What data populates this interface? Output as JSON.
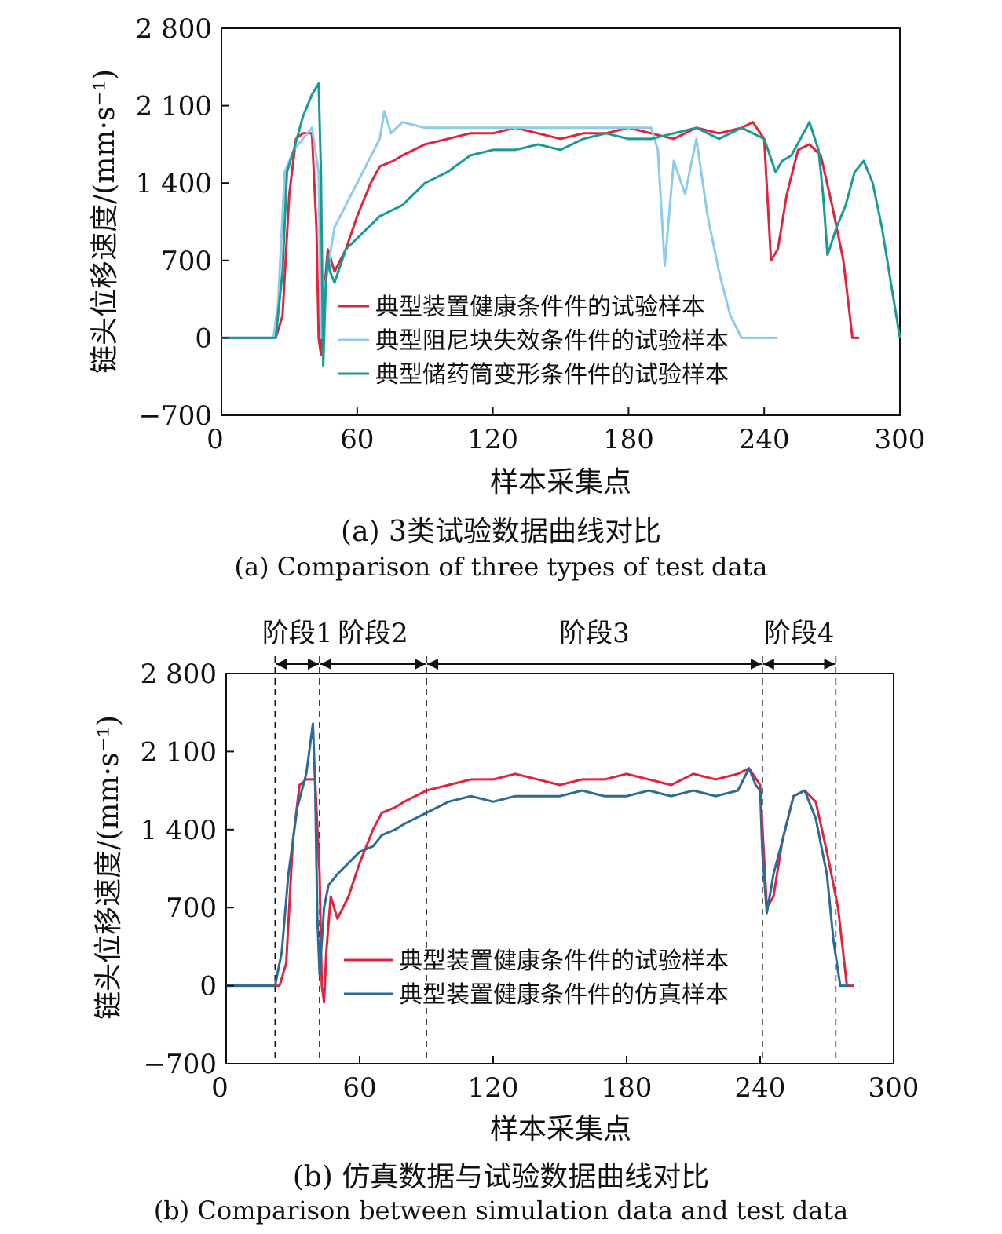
{
  "chart_data": [
    {
      "type": "line",
      "panel": "a",
      "caption_zh": "(a) 3类试验数据曲线对比",
      "caption_en": "(a) Comparison of three types of test data",
      "xlabel": "样本采集点",
      "ylabel": "链头位移速度/(mm·s⁻¹)",
      "xlim": [
        0,
        300
      ],
      "ylim": [
        -700,
        2800
      ],
      "xticks": [
        0,
        60,
        120,
        180,
        240,
        300
      ],
      "yticks": [
        -700,
        0,
        700,
        1400,
        2100,
        2800
      ],
      "ytick_labels": [
        "−700",
        "0",
        "700",
        "1 400",
        "2 100",
        "2 800"
      ],
      "grid": false,
      "legend_position": "lower-center",
      "series": [
        {
          "name": "典型装置健康条件件的试验样本",
          "color": "#e0243c",
          "x": [
            0,
            24,
            27,
            30,
            33,
            36,
            40,
            42,
            43,
            44,
            45,
            47,
            50,
            55,
            60,
            66,
            70,
            76,
            80,
            90,
            100,
            110,
            120,
            130,
            140,
            150,
            160,
            170,
            180,
            190,
            200,
            210,
            220,
            230,
            235,
            240,
            243,
            246,
            250,
            255,
            260,
            265,
            270,
            275,
            279,
            282
          ],
          "y": [
            0,
            0,
            200,
            1300,
            1800,
            1850,
            1850,
            1000,
            0,
            -150,
            300,
            800,
            600,
            800,
            1100,
            1400,
            1550,
            1600,
            1650,
            1750,
            1800,
            1850,
            1850,
            1900,
            1850,
            1800,
            1850,
            1850,
            1900,
            1850,
            1800,
            1900,
            1850,
            1900,
            1950,
            1800,
            700,
            800,
            1300,
            1700,
            1750,
            1650,
            1200,
            700,
            0,
            0
          ]
        },
        {
          "name": "典型阻尼块失效条件件的试验样本",
          "color": "#8dcbeb",
          "x": [
            0,
            23,
            25,
            28,
            32,
            36,
            40,
            43,
            44,
            46,
            50,
            55,
            60,
            65,
            70,
            72,
            75,
            80,
            90,
            100,
            110,
            120,
            140,
            160,
            180,
            190,
            193,
            196,
            200,
            205,
            210,
            215,
            220,
            225,
            230,
            240,
            246
          ],
          "y": [
            0,
            0,
            300,
            1500,
            1700,
            1800,
            1900,
            1500,
            0,
            500,
            1000,
            1200,
            1400,
            1600,
            1800,
            2050,
            1850,
            1950,
            1900,
            1900,
            1900,
            1900,
            1900,
            1900,
            1900,
            1900,
            1700,
            650,
            1600,
            1300,
            1800,
            1100,
            600,
            200,
            0,
            0,
            0
          ]
        },
        {
          "name": "典型储药筒变形条件件的试验样本",
          "color": "#1a9a94",
          "x": [
            0,
            24,
            27,
            29,
            32,
            36,
            40,
            43,
            44,
            45,
            46,
            47,
            48,
            50,
            55,
            60,
            65,
            70,
            80,
            90,
            100,
            110,
            120,
            130,
            140,
            150,
            160,
            170,
            180,
            190,
            200,
            210,
            220,
            230,
            240,
            245,
            248,
            252,
            256,
            260,
            264,
            266,
            268,
            272,
            276,
            280,
            284,
            288,
            292,
            296,
            300
          ],
          "y": [
            0,
            0,
            600,
            1500,
            1700,
            2000,
            2200,
            2300,
            1500,
            -250,
            400,
            750,
            600,
            500,
            800,
            900,
            1000,
            1100,
            1200,
            1400,
            1500,
            1650,
            1700,
            1700,
            1750,
            1700,
            1800,
            1850,
            1800,
            1800,
            1850,
            1900,
            1800,
            1900,
            1800,
            1500,
            1600,
            1650,
            1800,
            1950,
            1700,
            1300,
            750,
            1000,
            1200,
            1500,
            1600,
            1400,
            1000,
            500,
            0
          ]
        }
      ]
    },
    {
      "type": "line",
      "panel": "b",
      "caption_zh": "(b) 仿真数据与试验数据曲线对比",
      "caption_en": "(b) Comparison between simulation data and test data",
      "xlabel": "样本采集点",
      "ylabel": "链头位移速度/(mm·s⁻¹)",
      "xlim": [
        0,
        300
      ],
      "ylim": [
        -700,
        2800
      ],
      "xticks": [
        0,
        60,
        120,
        180,
        240,
        300
      ],
      "yticks": [
        -700,
        0,
        700,
        1400,
        2100,
        2800
      ],
      "ytick_labels": [
        "−700",
        "0",
        "700",
        "1 400",
        "2 100",
        "2 800"
      ],
      "grid": false,
      "legend_position": "lower-center",
      "stages": [
        {
          "label": "阶段1",
          "x_start": 22,
          "x_end": 42
        },
        {
          "label": "阶段2",
          "x_start": 42,
          "x_end": 90
        },
        {
          "label": "阶段3",
          "x_start": 90,
          "x_end": 241
        },
        {
          "label": "阶段4",
          "x_start": 241,
          "x_end": 274
        }
      ],
      "series": [
        {
          "name": "典型装置健康条件件的试验样本",
          "color": "#e0243c",
          "x": [
            0,
            24,
            27,
            30,
            33,
            36,
            40,
            42,
            43,
            44,
            45,
            47,
            50,
            55,
            60,
            66,
            70,
            76,
            80,
            90,
            100,
            110,
            120,
            130,
            140,
            150,
            160,
            170,
            180,
            190,
            200,
            210,
            220,
            230,
            235,
            240,
            243,
            246,
            250,
            255,
            260,
            265,
            270,
            275,
            279,
            282
          ],
          "y": [
            0,
            0,
            200,
            1300,
            1800,
            1850,
            1850,
            1000,
            0,
            -150,
            300,
            800,
            600,
            800,
            1100,
            1400,
            1550,
            1600,
            1650,
            1750,
            1800,
            1850,
            1850,
            1900,
            1850,
            1800,
            1850,
            1850,
            1900,
            1850,
            1800,
            1900,
            1850,
            1900,
            1950,
            1800,
            700,
            800,
            1300,
            1700,
            1750,
            1650,
            1200,
            700,
            0,
            0
          ]
        },
        {
          "name": "典型装置健康条件件的仿真样本",
          "color": "#2c6a98",
          "x": [
            0,
            22,
            25,
            28,
            32,
            36,
            39,
            40,
            41,
            42,
            43,
            44,
            46,
            50,
            55,
            60,
            66,
            70,
            76,
            80,
            90,
            100,
            110,
            120,
            130,
            140,
            150,
            160,
            170,
            180,
            190,
            200,
            210,
            220,
            230,
            235,
            238,
            240,
            241,
            243,
            246,
            250,
            255,
            260,
            265,
            270,
            273,
            276,
            280
          ],
          "y": [
            0,
            0,
            300,
            1000,
            1600,
            1900,
            2350,
            1800,
            600,
            100,
            400,
            700,
            900,
            1000,
            1100,
            1200,
            1250,
            1350,
            1400,
            1450,
            1550,
            1650,
            1700,
            1650,
            1700,
            1700,
            1700,
            1750,
            1700,
            1700,
            1750,
            1700,
            1750,
            1700,
            1750,
            1950,
            1800,
            1750,
            1200,
            650,
            1000,
            1300,
            1700,
            1750,
            1500,
            1000,
            400,
            0,
            0
          ]
        }
      ]
    }
  ]
}
